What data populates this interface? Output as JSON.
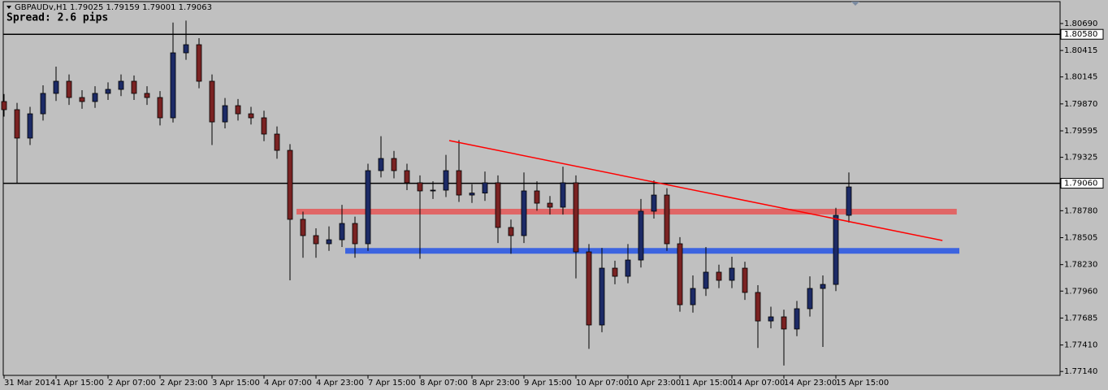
{
  "chart_data": {
    "type": "candlestick",
    "title": "GBPAUDv,H1  1.79025 1.79159 1.79001 1.79063",
    "subtitle": "Spread: 2.6 pips",
    "categories": [
      "31 Mar 2014",
      null,
      null,
      null,
      "1 Apr 15:00",
      null,
      null,
      null,
      "2 Apr 07:00",
      null,
      null,
      null,
      "2 Apr 23:00",
      null,
      null,
      null,
      "3 Apr 15:00",
      null,
      null,
      null,
      "4 Apr 07:00",
      null,
      null,
      null,
      "4 Apr 23:00",
      null,
      null,
      null,
      "7 Apr 15:00",
      null,
      null,
      null,
      "8 Apr 07:00",
      null,
      null,
      null,
      "8 Apr 23:00",
      null,
      null,
      null,
      "9 Apr 15:00",
      null,
      null,
      null,
      "10 Apr 07:00",
      null,
      null,
      null,
      "10 Apr 23:00",
      null,
      null,
      null,
      "11 Apr 15:00",
      null,
      null,
      null,
      "14 Apr 07:00",
      null,
      null,
      null,
      "14 Apr 23:00",
      null,
      null,
      null,
      "15 Apr 15:00",
      null
    ],
    "open": [
      1.79894,
      1.79811,
      1.79521,
      1.79769,
      1.79977,
      1.80101,
      1.79935,
      1.79894,
      1.79977,
      1.80018,
      1.80101,
      1.79977,
      1.79935,
      1.79728,
      1.80391,
      1.80474,
      1.80101,
      1.79686,
      1.79852,
      1.79769,
      1.79728,
      1.79562,
      1.79396,
      1.78692,
      1.78526,
      1.78443,
      1.78484,
      1.7865,
      1.78443,
      1.79189,
      1.79313,
      1.79189,
      1.79065,
      1.78982,
      1.7899,
      1.79189,
      1.7894,
      1.7896,
      1.79065,
      1.78609,
      1.78526,
      1.78982,
      1.78857,
      1.78816,
      1.79065,
      1.7836,
      1.77614,
      1.78194,
      1.78111,
      1.78277,
      1.78775,
      1.7894,
      1.78443,
      1.77821,
      1.77987,
      1.78153,
      1.7807,
      1.78194,
      1.77946,
      1.77655,
      1.77697,
      1.77573,
      1.7778,
      1.77987,
      1.78028,
      1.78733
    ],
    "high": [
      1.7997,
      1.7988,
      1.7984,
      1.8006,
      1.8025,
      1.8017,
      1.8001,
      1.8005,
      1.8009,
      1.8017,
      1.8016,
      1.8005,
      1.8,
      1.807,
      1.8072,
      1.8054,
      1.8017,
      1.7993,
      1.7992,
      1.7984,
      1.798,
      1.7964,
      1.7946,
      1.7877,
      1.786,
      1.7862,
      1.7884,
      1.7872,
      1.7926,
      1.7954,
      1.7939,
      1.7926,
      1.7914,
      1.7908,
      1.7935,
      1.795,
      1.7905,
      1.7918,
      1.7914,
      1.7869,
      1.7917,
      1.7908,
      1.7893,
      1.7923,
      1.7914,
      1.7844,
      1.784,
      1.7827,
      1.7844,
      1.789,
      1.7909,
      1.7901,
      1.7851,
      1.7812,
      1.7841,
      1.7823,
      1.7831,
      1.7826,
      1.7802,
      1.778,
      1.7777,
      1.7786,
      1.7811,
      1.7812,
      1.7881,
      1.7917
    ],
    "low": [
      1.7974,
      1.7906,
      1.7945,
      1.797,
      1.799,
      1.7986,
      1.7982,
      1.7983,
      1.7991,
      1.7995,
      1.7991,
      1.7986,
      1.7965,
      1.7968,
      1.8032,
      1.8003,
      1.7945,
      1.7962,
      1.797,
      1.7966,
      1.7949,
      1.7931,
      1.7807,
      1.783,
      1.783,
      1.7837,
      1.7841,
      1.783,
      1.7837,
      1.7912,
      1.7911,
      1.7899,
      1.7829,
      1.789,
      1.7892,
      1.7887,
      1.7886,
      1.7888,
      1.7845,
      1.7834,
      1.7845,
      1.7878,
      1.7874,
      1.7874,
      1.7809,
      1.7737,
      1.7754,
      1.7803,
      1.7804,
      1.782,
      1.787,
      1.7837,
      1.7775,
      1.7774,
      1.7791,
      1.7799,
      1.7799,
      1.7787,
      1.7738,
      1.7758,
      1.772,
      1.775,
      1.777,
      1.7739,
      1.7796,
      1.7866
    ],
    "close": [
      1.79811,
      1.79521,
      1.79769,
      1.79977,
      1.80101,
      1.79935,
      1.79894,
      1.79977,
      1.80018,
      1.80101,
      1.79977,
      1.79935,
      1.79728,
      1.80391,
      1.80474,
      1.80101,
      1.79686,
      1.79852,
      1.79769,
      1.79728,
      1.79562,
      1.79396,
      1.78692,
      1.78526,
      1.78443,
      1.78484,
      1.7865,
      1.78443,
      1.79189,
      1.79313,
      1.79189,
      1.79065,
      1.78982,
      1.7899,
      1.79189,
      1.7894,
      1.7896,
      1.79065,
      1.78609,
      1.78526,
      1.78982,
      1.78857,
      1.78816,
      1.79065,
      1.7836,
      1.77614,
      1.78194,
      1.78111,
      1.78277,
      1.78775,
      1.7894,
      1.78443,
      1.77821,
      1.77987,
      1.78153,
      1.7807,
      1.78194,
      1.77946,
      1.77655,
      1.77697,
      1.77573,
      1.7778,
      1.77987,
      1.78028,
      1.78733,
      1.79023
    ],
    "up_color": "#1c2a66",
    "down_color": "#7a2222",
    "wick_color": "#000000",
    "ylim": [
      1.771,
      1.8093
    ],
    "yticks": [
      {
        "value": 1.8069,
        "label": "1.80690"
      },
      1.80415,
      1.80145,
      {
        "value": 1.7987,
        "label": "1.79870"
      },
      1.79595,
      1.79325,
      {
        "value": 1.7878,
        "label": "1.78780"
      },
      1.78505,
      {
        "value": 1.7823,
        "label": "1.78230"
      },
      {
        "value": 1.7796,
        "label": "1.77960"
      },
      1.77685,
      {
        "value": 1.7741,
        "label": "1.77410"
      },
      {
        "value": 1.7714,
        "label": "1.77140"
      }
    ],
    "hlines": [
      {
        "value": 1.8058,
        "label": "1.80580"
      },
      {
        "value": 1.7906,
        "label": "1.79060"
      }
    ],
    "zones": [
      {
        "value": 1.7877,
        "start": 22.5,
        "end": 73.3,
        "color": "#e06666"
      },
      {
        "value": 1.7837,
        "start": 26.25,
        "end": 73.5,
        "color": "#3c64e0"
      }
    ],
    "trendline": {
      "start": [
        34.25,
        1.79496
      ],
      "end": [
        72.2,
        1.78476
      ],
      "color": "#ff0000"
    }
  }
}
